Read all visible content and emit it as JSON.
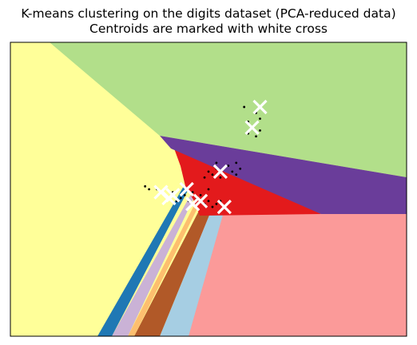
{
  "chart_data": {
    "type": "scatter",
    "title": "K-means clustering on the digits dataset (PCA-reduced data)",
    "subtitle": "Centroids are marked with white cross",
    "xlabel": "",
    "ylabel": "",
    "axes_ticks": false,
    "background": "decision-regions",
    "region_colors": {
      "yellow": "#ffff99",
      "green": "#b2df8a",
      "purple": "#6a3d9a",
      "red": "#e31a1c",
      "salmon": "#fb9a99",
      "light_blue": "#a6cee3",
      "brown": "#b15928",
      "orange": "#fdbf6f",
      "lavender": "#cab2d6",
      "blue": "#1f78b4"
    },
    "point_color": "#000000",
    "centroid_color": "#ffffff",
    "centroids": [
      {
        "x": 0.63,
        "y": 0.78
      },
      {
        "x": 0.61,
        "y": 0.71
      },
      {
        "x": 0.53,
        "y": 0.56
      },
      {
        "x": 0.54,
        "y": 0.44
      },
      {
        "x": 0.48,
        "y": 0.46
      },
      {
        "x": 0.445,
        "y": 0.5
      },
      {
        "x": 0.41,
        "y": 0.48
      },
      {
        "x": 0.38,
        "y": 0.49
      },
      {
        "x": 0.4,
        "y": 0.47
      },
      {
        "x": 0.46,
        "y": 0.45
      }
    ],
    "points": [
      {
        "x": 0.59,
        "y": 0.78
      },
      {
        "x": 0.62,
        "y": 0.76
      },
      {
        "x": 0.63,
        "y": 0.74
      },
      {
        "x": 0.6,
        "y": 0.73
      },
      {
        "x": 0.63,
        "y": 0.7
      },
      {
        "x": 0.6,
        "y": 0.69
      },
      {
        "x": 0.62,
        "y": 0.68
      },
      {
        "x": 0.52,
        "y": 0.59
      },
      {
        "x": 0.55,
        "y": 0.58
      },
      {
        "x": 0.57,
        "y": 0.59
      },
      {
        "x": 0.5,
        "y": 0.56
      },
      {
        "x": 0.51,
        "y": 0.55
      },
      {
        "x": 0.53,
        "y": 0.54
      },
      {
        "x": 0.56,
        "y": 0.56
      },
      {
        "x": 0.57,
        "y": 0.55
      },
      {
        "x": 0.58,
        "y": 0.57
      },
      {
        "x": 0.52,
        "y": 0.57
      },
      {
        "x": 0.49,
        "y": 0.54
      },
      {
        "x": 0.34,
        "y": 0.51
      },
      {
        "x": 0.35,
        "y": 0.5
      },
      {
        "x": 0.37,
        "y": 0.5
      },
      {
        "x": 0.39,
        "y": 0.48
      },
      {
        "x": 0.41,
        "y": 0.49
      },
      {
        "x": 0.43,
        "y": 0.47
      },
      {
        "x": 0.44,
        "y": 0.48
      },
      {
        "x": 0.45,
        "y": 0.46
      },
      {
        "x": 0.47,
        "y": 0.47
      },
      {
        "x": 0.49,
        "y": 0.45
      },
      {
        "x": 0.5,
        "y": 0.46
      },
      {
        "x": 0.51,
        "y": 0.44
      },
      {
        "x": 0.52,
        "y": 0.45
      },
      {
        "x": 0.42,
        "y": 0.46
      },
      {
        "x": 0.46,
        "y": 0.49
      },
      {
        "x": 0.48,
        "y": 0.48
      },
      {
        "x": 0.53,
        "y": 0.46
      },
      {
        "x": 0.5,
        "y": 0.5
      }
    ]
  }
}
